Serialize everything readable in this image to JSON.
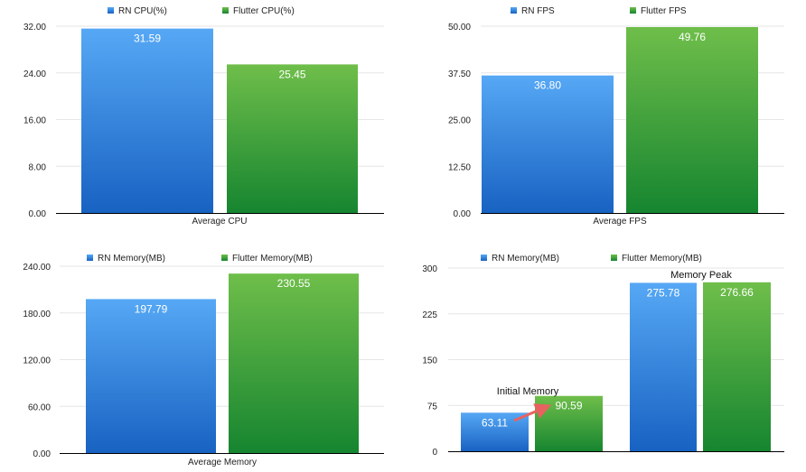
{
  "colors": {
    "rn_top": "#56a8f5",
    "rn_bottom": "#1862c2",
    "flutter_top": "#6fbe4a",
    "flutter_bottom": "#168530",
    "grid": "#e6e6e6",
    "axis": "#000000",
    "arrow": "#e8635f"
  },
  "chart_data": [
    {
      "type": "bar",
      "title": "",
      "xlabel": "",
      "ylabel": "",
      "categories": [
        "Average CPU"
      ],
      "series": [
        {
          "name": "RN CPU(%)",
          "values": [
            31.59
          ],
          "labels": [
            "31.59"
          ]
        },
        {
          "name": "Flutter CPU(%)",
          "values": [
            25.45
          ],
          "labels": [
            "25.45"
          ]
        }
      ],
      "ylim": [
        0,
        32
      ],
      "yticks": [
        "0.00",
        "8.00",
        "16.00",
        "24.00",
        "32.00"
      ],
      "legend": "top-center",
      "grid": true
    },
    {
      "type": "bar",
      "title": "",
      "xlabel": "",
      "ylabel": "",
      "categories": [
        "Average FPS"
      ],
      "series": [
        {
          "name": "RN FPS",
          "values": [
            36.8
          ],
          "labels": [
            "36.80"
          ]
        },
        {
          "name": "Flutter FPS",
          "values": [
            49.76
          ],
          "labels": [
            "49.76"
          ]
        }
      ],
      "ylim": [
        0,
        50
      ],
      "yticks": [
        "0.00",
        "12.50",
        "25.00",
        "37.50",
        "50.00"
      ],
      "legend": "top-center",
      "grid": true
    },
    {
      "type": "bar",
      "title": "",
      "xlabel": "",
      "ylabel": "",
      "categories": [
        "Average Memory"
      ],
      "series": [
        {
          "name": "RN Memory(MB)",
          "values": [
            197.79
          ],
          "labels": [
            "197.79"
          ]
        },
        {
          "name": "Flutter Memory(MB)",
          "values": [
            230.55
          ],
          "labels": [
            "230.55"
          ]
        }
      ],
      "ylim": [
        0,
        240
      ],
      "yticks": [
        "0.00",
        "60.00",
        "120.00",
        "180.00",
        "240.00"
      ],
      "legend": "top-center",
      "grid": true
    },
    {
      "type": "bar",
      "title": "",
      "xlabel": "",
      "ylabel": "",
      "categories": [
        "",
        ""
      ],
      "series": [
        {
          "name": "RN Memory(MB)",
          "values": [
            63.11,
            275.78
          ],
          "labels": [
            "63.11",
            "275.78"
          ]
        },
        {
          "name": "Flutter Memory(MB)",
          "values": [
            90.59,
            276.66
          ],
          "labels": [
            "90.59",
            "276.66"
          ]
        }
      ],
      "ylim": [
        0,
        300
      ],
      "yticks": [
        "0",
        "75",
        "150",
        "225",
        "300"
      ],
      "annotations": [
        "Initial Memory",
        "Memory Peak"
      ],
      "arrow": {
        "from": "63.11",
        "to": "90.59"
      },
      "legend": "top-center",
      "grid": true
    }
  ]
}
